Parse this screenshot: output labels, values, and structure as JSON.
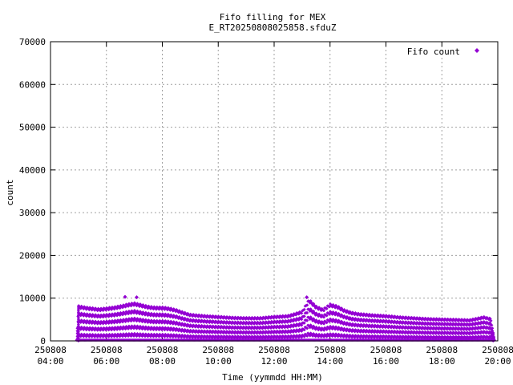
{
  "chart_data": {
    "type": "scatter",
    "title": "Fifo filling for MEX",
    "subtitle": "E_RT20250808025858.sfduZ",
    "xlabel": "Time (yymmdd HH:MM)",
    "ylabel": "count",
    "xlim": [
      "04:00",
      "20:00"
    ],
    "ylim": [
      0,
      70000
    ],
    "grid": true,
    "legend_position": "top-right",
    "x_ticks": [
      {
        "date": "250808",
        "time": "04:00"
      },
      {
        "date": "250808",
        "time": "06:00"
      },
      {
        "date": "250808",
        "time": "08:00"
      },
      {
        "date": "250808",
        "time": "10:00"
      },
      {
        "date": "250808",
        "time": "12:00"
      },
      {
        "date": "250808",
        "time": "14:00"
      },
      {
        "date": "250808",
        "time": "16:00"
      },
      {
        "date": "250808",
        "time": "18:00"
      },
      {
        "date": "250808",
        "time": "20:00"
      }
    ],
    "y_ticks": [
      "0",
      "10000",
      "20000",
      "30000",
      "40000",
      "50000",
      "60000",
      "70000"
    ],
    "series": [
      {
        "name": "Fifo count",
        "color": "#9400d3",
        "marker": "diamond",
        "x": [
          "04:56",
          "05:00",
          "05:15",
          "05:30",
          "05:45",
          "06:00",
          "06:15",
          "06:30",
          "06:45",
          "07:00",
          "07:15",
          "07:30",
          "07:45",
          "08:00",
          "08:15",
          "08:30",
          "08:45",
          "09:00",
          "09:30",
          "10:00",
          "10:30",
          "11:00",
          "11:30",
          "12:00",
          "12:30",
          "13:00",
          "13:15",
          "13:30",
          "13:45",
          "14:00",
          "14:15",
          "14:30",
          "14:45",
          "15:00",
          "15:30",
          "16:00",
          "16:30",
          "17:00",
          "17:30",
          "18:00",
          "18:30",
          "19:00",
          "19:30",
          "19:45",
          "19:53"
        ],
        "y": [
          0,
          8300,
          8000,
          7800,
          7600,
          7800,
          8000,
          8300,
          8700,
          9000,
          8600,
          8200,
          8000,
          8000,
          7800,
          7400,
          6800,
          6300,
          6000,
          5800,
          5600,
          5500,
          5500,
          5800,
          6000,
          7000,
          9800,
          8200,
          7500,
          8700,
          8300,
          7400,
          6800,
          6500,
          6200,
          6000,
          5700,
          5500,
          5300,
          5200,
          5100,
          5000,
          5700,
          5300,
          0
        ],
        "outliers": [
          {
            "x": "06:40",
            "y": 10300
          },
          {
            "x": "07:05",
            "y": 10200
          },
          {
            "x": "13:10",
            "y": 10200
          }
        ]
      }
    ]
  }
}
